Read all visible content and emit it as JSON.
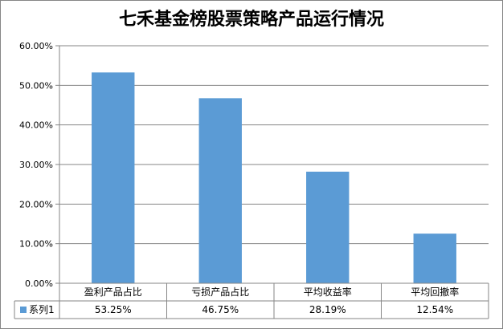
{
  "chart_data": {
    "type": "bar",
    "title": "七禾基金榜股票策略产品运行情况",
    "categories": [
      "盈利产品占比",
      "亏损产品占比",
      "平均收益率",
      "平均回撤率"
    ],
    "series": [
      {
        "name": "系列1",
        "values": [
          53.25,
          46.75,
          28.19,
          12.54
        ],
        "color": "#5B9BD5"
      }
    ],
    "data_table_values": [
      "53.25%",
      "46.75%",
      "28.19%",
      "12.54%"
    ],
    "y_ticks": [
      "0.00%",
      "10.00%",
      "20.00%",
      "30.00%",
      "40.00%",
      "50.00%",
      "60.00%"
    ],
    "ylim": [
      0,
      60
    ],
    "grid": true,
    "legend": "data-table"
  }
}
